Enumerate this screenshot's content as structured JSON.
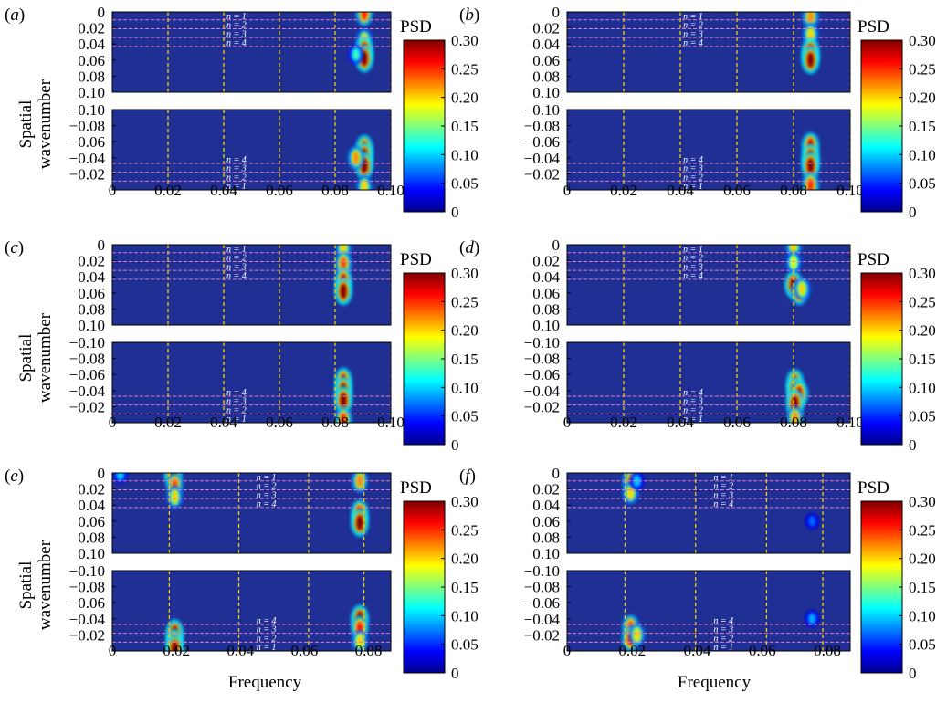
{
  "figure": {
    "ylabel_line1": "Spatial",
    "ylabel_line2": "wavenumber",
    "xlabel": "Frequency",
    "colorbar_label": "PSD",
    "colorbar_ticks": [
      "0.30",
      "0.25",
      "0.20",
      "0.15",
      "0.10",
      "0.05",
      "0"
    ],
    "colorbar_range": [
      0,
      0.3
    ],
    "colormap": "jet",
    "background_color": "#1f2f94",
    "guide_line_color": "#f2d000",
    "mode_line_color": "#e67cc0"
  },
  "panels": [
    {
      "label_pre": "(",
      "label_letter": "a",
      "label_post": ")",
      "xlim": [
        0,
        0.1
      ],
      "x_ticks": [
        "0",
        "0.02",
        "0.04",
        "0.06",
        "0.08",
        "0.10"
      ],
      "x_tick_values": [
        0,
        0.02,
        0.04,
        0.06,
        0.08,
        0.1
      ],
      "guide_lines_x": [
        0.02,
        0.04,
        0.06,
        0.08,
        0.1
      ],
      "top_y_ticks": [
        "0",
        "0.02",
        "0.04",
        "0.06",
        "0.08",
        "0.10"
      ],
      "bottom_y_ticks": [
        "-0.10",
        "-0.08",
        "-0.06",
        "-0.04",
        "-0.02"
      ],
      "mode_labels_top": [
        "n = 1",
        "n = 2",
        "n = 3",
        "n = 4"
      ],
      "mode_labels_bottom": [
        "n = 4",
        "n = 3",
        "n = 2",
        "n = 1"
      ],
      "mode_label_x": 0.041,
      "blobs_top": [
        {
          "f": 0.0905,
          "k": 0.002,
          "intensity": 0.25
        },
        {
          "f": 0.0905,
          "k": 0.035,
          "intensity": 0.2
        },
        {
          "f": 0.0905,
          "k": 0.048,
          "intensity": 0.3
        },
        {
          "f": 0.0905,
          "k": 0.058,
          "intensity": 0.3
        },
        {
          "f": 0.0875,
          "k": 0.053,
          "intensity": 0.13
        }
      ],
      "blobs_bottom": [
        {
          "f": 0.0905,
          "k": -0.052,
          "intensity": 0.28
        },
        {
          "f": 0.0905,
          "k": -0.042,
          "intensity": 0.3
        },
        {
          "f": 0.0905,
          "k": -0.03,
          "intensity": 0.3
        },
        {
          "f": 0.0875,
          "k": -0.04,
          "intensity": 0.22
        },
        {
          "f": 0.0905,
          "k": -0.004,
          "intensity": 0.2
        }
      ]
    },
    {
      "label_pre": "(",
      "label_letter": "b",
      "label_post": ")",
      "xlim": [
        0,
        0.1
      ],
      "x_ticks": [
        "0",
        "0.02",
        "0.04",
        "0.06",
        "0.08",
        "0.10"
      ],
      "x_tick_values": [
        0,
        0.02,
        0.04,
        0.06,
        0.08,
        0.1
      ],
      "guide_lines_x": [
        0.02,
        0.04,
        0.06,
        0.08,
        0.1
      ],
      "top_y_ticks": [
        "0",
        "0.02",
        "0.04",
        "0.06",
        "0.08",
        "0.10"
      ],
      "bottom_y_ticks": [
        "-0.10",
        "-0.08",
        "-0.06",
        "-0.04",
        "-0.02"
      ],
      "mode_labels_top": [
        "n = 1",
        "n = 2",
        "n = 3",
        "n = 4"
      ],
      "mode_labels_bottom": [
        "n = 4",
        "n = 3",
        "n = 2",
        "n = 1"
      ],
      "mode_label_x": 0.041,
      "blobs_top": [
        {
          "f": 0.086,
          "k": 0.006,
          "intensity": 0.22
        },
        {
          "f": 0.086,
          "k": 0.028,
          "intensity": 0.2
        },
        {
          "f": 0.086,
          "k": 0.05,
          "intensity": 0.3
        },
        {
          "f": 0.086,
          "k": 0.06,
          "intensity": 0.3
        }
      ],
      "blobs_bottom": [
        {
          "f": 0.086,
          "k": -0.055,
          "intensity": 0.28
        },
        {
          "f": 0.086,
          "k": -0.04,
          "intensity": 0.3
        },
        {
          "f": 0.086,
          "k": -0.03,
          "intensity": 0.3
        },
        {
          "f": 0.086,
          "k": -0.006,
          "intensity": 0.25
        }
      ]
    },
    {
      "label_pre": "(",
      "label_letter": "c",
      "label_post": ")",
      "xlim": [
        0,
        0.1
      ],
      "x_ticks": [
        "0",
        "0.02",
        "0.04",
        "0.06",
        "0.08",
        "0.10"
      ],
      "x_tick_values": [
        0,
        0.02,
        0.04,
        0.06,
        0.08,
        0.1
      ],
      "guide_lines_x": [
        0.02,
        0.04,
        0.06,
        0.08,
        0.1
      ],
      "top_y_ticks": [
        "0",
        "0.02",
        "0.04",
        "0.06",
        "0.08",
        "0.10"
      ],
      "bottom_y_ticks": [
        "-0.10",
        "-0.08",
        "-0.06",
        "-0.04",
        "-0.02"
      ],
      "mode_labels_top": [
        "n = 1",
        "n = 2",
        "n = 3",
        "n = 4"
      ],
      "mode_labels_bottom": [
        "n = 4",
        "n = 3",
        "n = 2",
        "n = 1"
      ],
      "mode_label_x": 0.041,
      "blobs_top": [
        {
          "f": 0.083,
          "k": 0.004,
          "intensity": 0.2
        },
        {
          "f": 0.083,
          "k": 0.024,
          "intensity": 0.24
        },
        {
          "f": 0.083,
          "k": 0.045,
          "intensity": 0.28
        },
        {
          "f": 0.083,
          "k": 0.058,
          "intensity": 0.3
        }
      ],
      "blobs_bottom": [
        {
          "f": 0.083,
          "k": -0.052,
          "intensity": 0.28
        },
        {
          "f": 0.083,
          "k": -0.04,
          "intensity": 0.3
        },
        {
          "f": 0.083,
          "k": -0.028,
          "intensity": 0.3
        },
        {
          "f": 0.083,
          "k": -0.004,
          "intensity": 0.25
        }
      ]
    },
    {
      "label_pre": "(",
      "label_letter": "d",
      "label_post": ")",
      "xlim": [
        0,
        0.1
      ],
      "x_ticks": [
        "0",
        "0.02",
        "0.04",
        "0.06",
        "0.08",
        "0.10"
      ],
      "x_tick_values": [
        0,
        0.02,
        0.04,
        0.06,
        0.08,
        0.1
      ],
      "guide_lines_x": [
        0.02,
        0.04,
        0.06,
        0.08,
        0.1
      ],
      "top_y_ticks": [
        "0",
        "0.02",
        "0.04",
        "0.06",
        "0.08",
        "0.10"
      ],
      "bottom_y_ticks": [
        "-0.10",
        "-0.08",
        "-0.06",
        "-0.04",
        "-0.02"
      ],
      "mode_labels_top": [
        "n = 1",
        "n = 2",
        "n = 3",
        "n = 4"
      ],
      "mode_labels_bottom": [
        "n = 4",
        "n = 3",
        "n = 2",
        "n = 1"
      ],
      "mode_label_x": 0.041,
      "blobs_top": [
        {
          "f": 0.08,
          "k": 0.002,
          "intensity": 0.2
        },
        {
          "f": 0.08,
          "k": 0.022,
          "intensity": 0.18
        },
        {
          "f": 0.08,
          "k": 0.05,
          "intensity": 0.3
        },
        {
          "f": 0.082,
          "k": 0.06,
          "intensity": 0.25
        },
        {
          "f": 0.083,
          "k": 0.055,
          "intensity": 0.2
        }
      ],
      "blobs_bottom": [
        {
          "f": 0.0805,
          "k": -0.05,
          "intensity": 0.28
        },
        {
          "f": 0.0805,
          "k": -0.04,
          "intensity": 0.3
        },
        {
          "f": 0.082,
          "k": -0.036,
          "intensity": 0.28
        },
        {
          "f": 0.0805,
          "k": -0.024,
          "intensity": 0.3
        },
        {
          "f": 0.0805,
          "k": -0.006,
          "intensity": 0.22
        }
      ]
    },
    {
      "label_pre": "(",
      "label_letter": "e",
      "label_post": ")",
      "xlim": [
        0,
        0.087
      ],
      "x_ticks": [
        "0",
        "0.02",
        "0.04",
        "0.06",
        "0.08"
      ],
      "x_tick_values": [
        0,
        0.02,
        0.04,
        0.06,
        0.08
      ],
      "guide_lines_x": [
        0.0178,
        0.0395,
        0.0613,
        0.0786
      ],
      "top_y_ticks": [
        "0",
        "0.02",
        "0.04",
        "0.06",
        "0.08",
        "0.10"
      ],
      "bottom_y_ticks": [
        "-0.10",
        "-0.08",
        "-0.06",
        "-0.04",
        "-0.02"
      ],
      "mode_labels_top": [
        "n = 1",
        "n = 2",
        "n = 3",
        "n = 4"
      ],
      "mode_labels_bottom": [
        "n = 4",
        "n = 3",
        "n = 2",
        "n = 1"
      ],
      "mode_label_x": 0.045,
      "blobs_top": [
        {
          "f": 0.019,
          "k": 0.002,
          "intensity": 0.3
        },
        {
          "f": 0.0195,
          "k": 0.015,
          "intensity": 0.24
        },
        {
          "f": 0.0195,
          "k": 0.03,
          "intensity": 0.2
        },
        {
          "f": 0.0025,
          "k": 0.002,
          "intensity": 0.1
        },
        {
          "f": 0.0773,
          "k": 0.01,
          "intensity": 0.22
        },
        {
          "f": 0.0773,
          "k": 0.05,
          "intensity": 0.28
        },
        {
          "f": 0.0773,
          "k": 0.062,
          "intensity": 0.3
        }
      ],
      "blobs_bottom": [
        {
          "f": 0.0195,
          "k": -0.022,
          "intensity": 0.3
        },
        {
          "f": 0.0195,
          "k": -0.01,
          "intensity": 0.3
        },
        {
          "f": 0.0195,
          "k": -0.003,
          "intensity": 0.3
        },
        {
          "f": 0.0773,
          "k": -0.04,
          "intensity": 0.3
        },
        {
          "f": 0.0773,
          "k": -0.028,
          "intensity": 0.26
        },
        {
          "f": 0.0773,
          "k": -0.012,
          "intensity": 0.2
        }
      ]
    },
    {
      "label_pre": "(",
      "label_letter": "f",
      "label_post": ")",
      "xlim": [
        0,
        0.087
      ],
      "x_ticks": [
        "0",
        "0.02",
        "0.04",
        "0.06",
        "0.08"
      ],
      "x_tick_values": [
        0,
        0.02,
        0.04,
        0.06,
        0.08
      ],
      "guide_lines_x": [
        0.0178,
        0.0395,
        0.0613,
        0.0786
      ],
      "top_y_ticks": [
        "0",
        "0.02",
        "0.04",
        "0.06",
        "0.08",
        "0.10"
      ],
      "bottom_y_ticks": [
        "-0.10",
        "-0.08",
        "-0.06",
        "-0.04",
        "-0.02"
      ],
      "mode_labels_top": [
        "n = 1",
        "n = 2",
        "n = 3",
        "n = 4"
      ],
      "mode_labels_bottom": [
        "n = 4",
        "n = 3",
        "n = 2",
        "n = 1"
      ],
      "mode_label_x": 0.045,
      "blobs_top": [
        {
          "f": 0.0195,
          "k": 0.01,
          "intensity": 0.22
        },
        {
          "f": 0.0195,
          "k": 0.025,
          "intensity": 0.2
        },
        {
          "f": 0.0215,
          "k": 0.01,
          "intensity": 0.1
        },
        {
          "f": 0.0753,
          "k": 0.06,
          "intensity": 0.07
        }
      ],
      "blobs_bottom": [
        {
          "f": 0.0195,
          "k": -0.03,
          "intensity": 0.24
        },
        {
          "f": 0.0195,
          "k": -0.015,
          "intensity": 0.26
        },
        {
          "f": 0.0215,
          "k": -0.02,
          "intensity": 0.2
        },
        {
          "f": 0.0753,
          "k": -0.04,
          "intensity": 0.09
        }
      ]
    }
  ],
  "chart_data": [
    {
      "type": "heatmap",
      "panel": "(a)",
      "xlabel": "",
      "ylabel": "Spatial wavenumber",
      "xlim": [
        0,
        0.1
      ],
      "ylim_top": [
        0,
        0.1
      ],
      "ylim_bottom": [
        -0.1,
        0
      ],
      "colorbar": "PSD",
      "clim": [
        0,
        0.3
      ],
      "peaks": [
        {
          "frequency": 0.0905,
          "wavenumber": 0.055,
          "psd": 0.3
        },
        {
          "frequency": 0.0905,
          "wavenumber": -0.038,
          "psd": 0.3
        }
      ]
    },
    {
      "type": "heatmap",
      "panel": "(b)",
      "xlabel": "",
      "ylabel": "",
      "xlim": [
        0,
        0.1
      ],
      "ylim_top": [
        0,
        0.1
      ],
      "ylim_bottom": [
        -0.1,
        0
      ],
      "colorbar": "PSD",
      "clim": [
        0,
        0.3
      ],
      "peaks": [
        {
          "frequency": 0.086,
          "wavenumber": 0.055,
          "psd": 0.3
        },
        {
          "frequency": 0.086,
          "wavenumber": -0.035,
          "psd": 0.3
        }
      ]
    },
    {
      "type": "heatmap",
      "panel": "(c)",
      "xlabel": "",
      "ylabel": "Spatial wavenumber",
      "xlim": [
        0,
        0.1
      ],
      "ylim_top": [
        0,
        0.1
      ],
      "ylim_bottom": [
        -0.1,
        0
      ],
      "colorbar": "PSD",
      "clim": [
        0,
        0.3
      ],
      "peaks": [
        {
          "frequency": 0.083,
          "wavenumber": 0.055,
          "psd": 0.3
        },
        {
          "frequency": 0.083,
          "wavenumber": -0.035,
          "psd": 0.3
        }
      ]
    },
    {
      "type": "heatmap",
      "panel": "(d)",
      "xlabel": "",
      "ylabel": "",
      "xlim": [
        0,
        0.1
      ],
      "ylim_top": [
        0,
        0.1
      ],
      "ylim_bottom": [
        -0.1,
        0
      ],
      "colorbar": "PSD",
      "clim": [
        0,
        0.3
      ],
      "peaks": [
        {
          "frequency": 0.08,
          "wavenumber": 0.05,
          "psd": 0.3
        },
        {
          "frequency": 0.0805,
          "wavenumber": -0.04,
          "psd": 0.3
        }
      ]
    },
    {
      "type": "heatmap",
      "panel": "(e)",
      "xlabel": "Frequency",
      "ylabel": "Spatial wavenumber",
      "xlim": [
        0,
        0.087
      ],
      "ylim_top": [
        0,
        0.1
      ],
      "ylim_bottom": [
        -0.1,
        0
      ],
      "colorbar": "PSD",
      "clim": [
        0,
        0.3
      ],
      "peaks": [
        {
          "frequency": 0.0195,
          "wavenumber": 0.005,
          "psd": 0.3
        },
        {
          "frequency": 0.0773,
          "wavenumber": 0.06,
          "psd": 0.3
        },
        {
          "frequency": 0.0195,
          "wavenumber": -0.012,
          "psd": 0.3
        },
        {
          "frequency": 0.0773,
          "wavenumber": -0.04,
          "psd": 0.3
        }
      ]
    },
    {
      "type": "heatmap",
      "panel": "(f)",
      "xlabel": "Frequency",
      "ylabel": "",
      "xlim": [
        0,
        0.087
      ],
      "ylim_top": [
        0,
        0.1
      ],
      "ylim_bottom": [
        -0.1,
        0
      ],
      "colorbar": "PSD",
      "clim": [
        0,
        0.3
      ],
      "peaks": [
        {
          "frequency": 0.0195,
          "wavenumber": 0.015,
          "psd": 0.22
        },
        {
          "frequency": 0.0195,
          "wavenumber": -0.02,
          "psd": 0.26
        },
        {
          "frequency": 0.0753,
          "wavenumber": 0.06,
          "psd": 0.07
        },
        {
          "frequency": 0.0753,
          "wavenumber": -0.04,
          "psd": 0.09
        }
      ]
    }
  ]
}
